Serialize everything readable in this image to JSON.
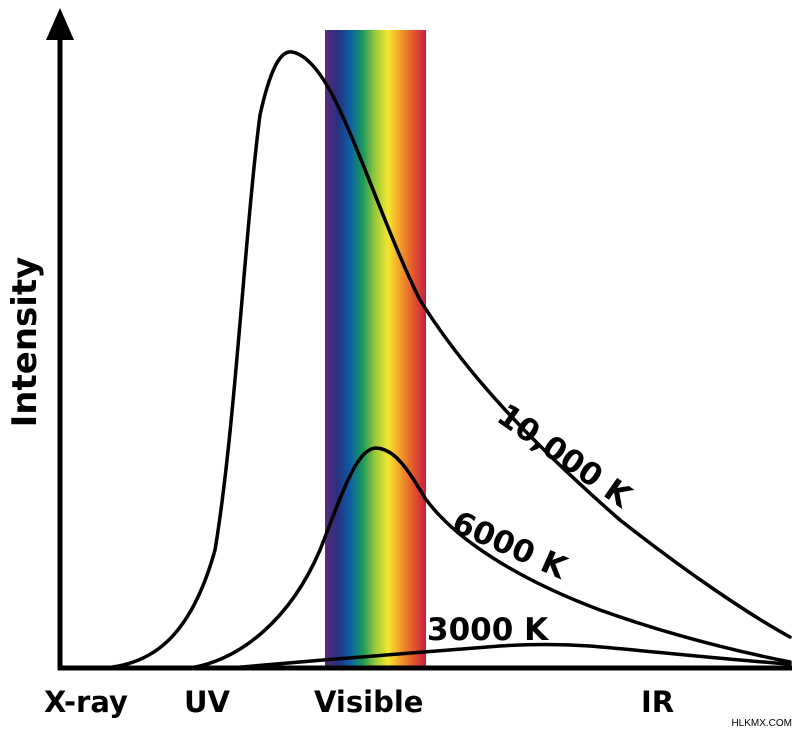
{
  "chart_data": {
    "type": "line",
    "title": "",
    "ylabel": "Intensity",
    "xlabel": "",
    "x_bands": [
      "X-ray",
      "UV",
      "Visible",
      "IR"
    ],
    "series": [
      {
        "name": "10,000 K",
        "temperature_k": 10000,
        "peak_intensity": 1.0
      },
      {
        "name": "6000 K",
        "temperature_k": 6000,
        "peak_intensity": 0.35
      },
      {
        "name": "3000 K",
        "temperature_k": 3000,
        "peak_intensity": 0.04
      }
    ],
    "visible_spectrum_colors": [
      "#5a2a7a",
      "#27307f",
      "#0b5fa6",
      "#1a9a5a",
      "#9dc93a",
      "#f4e630",
      "#f39a2a",
      "#e3562d",
      "#c81e45"
    ],
    "grid": false,
    "legend": "none"
  },
  "watermark": "HLKMX.COM"
}
